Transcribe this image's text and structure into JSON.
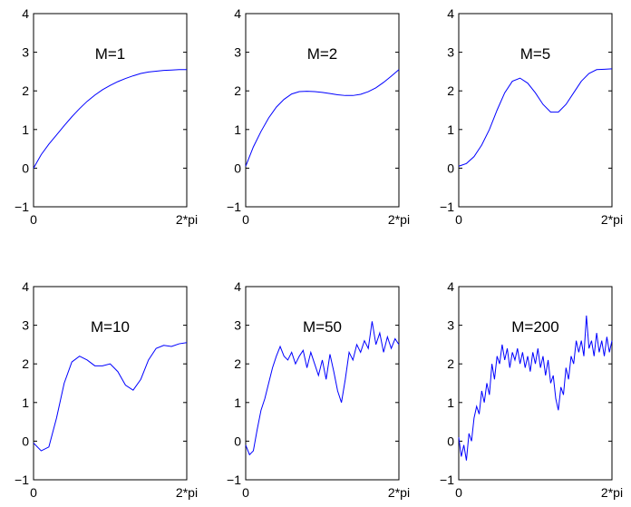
{
  "figure": {
    "background": "#ffffff",
    "line_color": "#0000ff"
  },
  "chart_data": [
    {
      "type": "line",
      "title": "M=1",
      "xlabel": "",
      "ylabel": "",
      "xlim": [
        0,
        6.2832
      ],
      "ylim": [
        -1,
        4
      ],
      "x_ticks": [
        {
          "value": 0,
          "label": "0"
        },
        {
          "value": 6.2832,
          "label": "2*pi"
        }
      ],
      "y_ticks": [
        -1,
        0,
        1,
        2,
        3,
        4
      ],
      "grid": false,
      "series": [
        {
          "color": "#0000ff",
          "x": [
            0,
            0.3142,
            0.6283,
            0.9425,
            1.2566,
            1.5708,
            1.885,
            2.1991,
            2.5133,
            2.8274,
            3.1416,
            3.4558,
            3.7699,
            4.0841,
            4.3982,
            4.7124,
            5.0265,
            5.3407,
            5.6549,
            5.969,
            6.2832
          ],
          "y": [
            0.0,
            0.35,
            0.62,
            0.86,
            1.1,
            1.33,
            1.54,
            1.73,
            1.89,
            2.03,
            2.14,
            2.24,
            2.32,
            2.39,
            2.45,
            2.49,
            2.51,
            2.53,
            2.54,
            2.55,
            2.55
          ]
        }
      ]
    },
    {
      "type": "line",
      "title": "M=2",
      "xlabel": "",
      "ylabel": "",
      "xlim": [
        0,
        6.2832
      ],
      "ylim": [
        -1,
        4
      ],
      "x_ticks": [
        {
          "value": 0,
          "label": "0"
        },
        {
          "value": 6.2832,
          "label": "2*pi"
        }
      ],
      "y_ticks": [
        -1,
        0,
        1,
        2,
        3,
        4
      ],
      "grid": false,
      "series": [
        {
          "color": "#0000ff",
          "x": [
            0,
            0.3142,
            0.6283,
            0.9425,
            1.2566,
            1.5708,
            1.885,
            2.1991,
            2.5133,
            2.8274,
            3.1416,
            3.4558,
            3.7699,
            4.0841,
            4.3982,
            4.7124,
            5.0265,
            5.3407,
            5.6549,
            5.969,
            6.2832
          ],
          "y": [
            0.05,
            0.55,
            0.95,
            1.3,
            1.58,
            1.78,
            1.92,
            1.98,
            1.99,
            1.98,
            1.96,
            1.93,
            1.9,
            1.88,
            1.88,
            1.91,
            1.98,
            2.08,
            2.22,
            2.38,
            2.55
          ]
        }
      ]
    },
    {
      "type": "line",
      "title": "M=5",
      "xlabel": "",
      "ylabel": "",
      "xlim": [
        0,
        6.2832
      ],
      "ylim": [
        -1,
        4
      ],
      "x_ticks": [
        {
          "value": 0,
          "label": "0"
        },
        {
          "value": 6.2832,
          "label": "2*pi"
        }
      ],
      "y_ticks": [
        -1,
        0,
        1,
        2,
        3,
        4
      ],
      "grid": false,
      "series": [
        {
          "color": "#0000ff",
          "x": [
            0,
            0.3142,
            0.6283,
            0.9425,
            1.2566,
            1.5708,
            1.885,
            2.1991,
            2.5133,
            2.8274,
            3.1416,
            3.4558,
            3.7699,
            4.0841,
            4.3982,
            4.7124,
            5.0265,
            5.3407,
            5.6549,
            5.969,
            6.2832
          ],
          "y": [
            0.05,
            0.12,
            0.3,
            0.6,
            1.0,
            1.5,
            1.95,
            2.25,
            2.33,
            2.2,
            1.95,
            1.65,
            1.45,
            1.45,
            1.65,
            1.95,
            2.25,
            2.45,
            2.55,
            2.56,
            2.57
          ]
        }
      ]
    },
    {
      "type": "line",
      "title": "M=10",
      "xlabel": "",
      "ylabel": "",
      "xlim": [
        0,
        6.2832
      ],
      "ylim": [
        -1,
        4
      ],
      "x_ticks": [
        {
          "value": 0,
          "label": "0"
        },
        {
          "value": 6.2832,
          "label": "2*pi"
        }
      ],
      "y_ticks": [
        -1,
        0,
        1,
        2,
        3,
        4
      ],
      "grid": false,
      "series": [
        {
          "color": "#0000ff",
          "x": [
            0,
            0.3142,
            0.6283,
            0.9425,
            1.2566,
            1.5708,
            1.885,
            2.1991,
            2.5133,
            2.8274,
            3.1416,
            3.4558,
            3.7699,
            4.0841,
            4.3982,
            4.7124,
            5.0265,
            5.3407,
            5.6549,
            5.969,
            6.2832
          ],
          "y": [
            -0.05,
            -0.25,
            -0.15,
            0.6,
            1.5,
            2.05,
            2.2,
            2.1,
            1.95,
            1.95,
            2.0,
            1.8,
            1.45,
            1.32,
            1.6,
            2.1,
            2.4,
            2.48,
            2.45,
            2.52,
            2.55
          ]
        }
      ]
    },
    {
      "type": "line",
      "title": "M=50",
      "xlabel": "",
      "ylabel": "",
      "xlim": [
        0,
        6.2832
      ],
      "ylim": [
        -1,
        4
      ],
      "x_ticks": [
        {
          "value": 0,
          "label": "0"
        },
        {
          "value": 6.2832,
          "label": "2*pi"
        }
      ],
      "y_ticks": [
        -1,
        0,
        1,
        2,
        3,
        4
      ],
      "grid": false,
      "series": [
        {
          "color": "#0000ff",
          "x": [
            0,
            0.157,
            0.314,
            0.471,
            0.628,
            0.785,
            0.942,
            1.1,
            1.257,
            1.414,
            1.571,
            1.728,
            1.885,
            2.042,
            2.199,
            2.356,
            2.513,
            2.67,
            2.827,
            2.985,
            3.142,
            3.299,
            3.456,
            3.613,
            3.77,
            3.927,
            4.084,
            4.241,
            4.398,
            4.555,
            4.712,
            4.869,
            5.027,
            5.184,
            5.341,
            5.498,
            5.655,
            5.812,
            5.969,
            6.126,
            6.283
          ],
          "y": [
            -0.1,
            -0.35,
            -0.25,
            0.3,
            0.8,
            1.1,
            1.5,
            1.9,
            2.2,
            2.45,
            2.2,
            2.1,
            2.3,
            2.0,
            2.2,
            2.35,
            1.9,
            2.3,
            2.0,
            1.7,
            2.1,
            1.6,
            2.25,
            1.8,
            1.3,
            1.0,
            1.6,
            2.3,
            2.1,
            2.5,
            2.3,
            2.6,
            2.4,
            3.1,
            2.5,
            2.8,
            2.3,
            2.7,
            2.4,
            2.65,
            2.5
          ]
        }
      ]
    },
    {
      "type": "line",
      "title": "M=200",
      "xlabel": "",
      "ylabel": "",
      "xlim": [
        0,
        6.2832
      ],
      "ylim": [
        -1,
        4
      ],
      "x_ticks": [
        {
          "value": 0,
          "label": "0"
        },
        {
          "value": 6.2832,
          "label": "2*pi"
        }
      ],
      "y_ticks": [
        -1,
        0,
        1,
        2,
        3,
        4
      ],
      "grid": false,
      "series": [
        {
          "color": "#0000ff",
          "x": [
            0,
            0.105,
            0.209,
            0.314,
            0.419,
            0.524,
            0.628,
            0.733,
            0.838,
            0.942,
            1.047,
            1.152,
            1.257,
            1.361,
            1.466,
            1.571,
            1.676,
            1.78,
            1.885,
            1.99,
            2.094,
            2.199,
            2.304,
            2.409,
            2.513,
            2.618,
            2.723,
            2.827,
            2.932,
            3.037,
            3.142,
            3.246,
            3.351,
            3.456,
            3.56,
            3.665,
            3.77,
            3.875,
            3.979,
            4.084,
            4.189,
            4.294,
            4.398,
            4.503,
            4.608,
            4.712,
            4.817,
            4.922,
            5.027,
            5.131,
            5.236,
            5.341,
            5.445,
            5.55,
            5.655,
            5.76,
            5.864,
            5.969,
            6.074,
            6.178,
            6.283
          ],
          "y": [
            0.1,
            -0.4,
            -0.1,
            -0.5,
            0.2,
            0.0,
            0.6,
            0.9,
            0.7,
            1.3,
            1.0,
            1.5,
            1.2,
            2.0,
            1.6,
            2.2,
            2.0,
            2.5,
            2.1,
            2.4,
            1.9,
            2.3,
            2.1,
            2.4,
            2.0,
            2.3,
            1.9,
            2.2,
            1.8,
            2.3,
            2.0,
            2.4,
            1.9,
            2.2,
            1.7,
            2.1,
            1.5,
            1.7,
            1.1,
            0.8,
            1.4,
            1.2,
            1.9,
            1.6,
            2.2,
            2.0,
            2.6,
            2.3,
            2.6,
            2.2,
            3.25,
            2.4,
            2.6,
            2.2,
            2.8,
            2.3,
            2.6,
            2.2,
            2.7,
            2.3,
            2.6
          ]
        }
      ]
    }
  ]
}
